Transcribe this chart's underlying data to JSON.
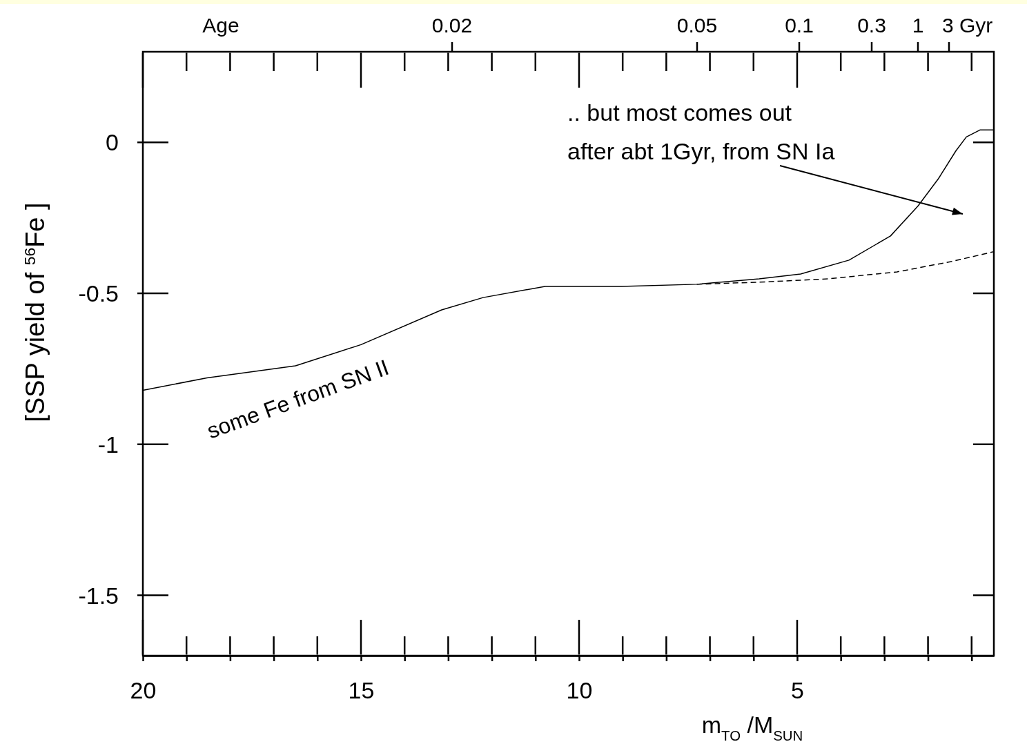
{
  "chart_data": {
    "type": "line",
    "xlabel": "m$_{TO}$ /M$_{SUN}$",
    "ylabel": "[SSP yield of $^{56}$Fe  ]",
    "xlim": [
      20,
      0.49
    ],
    "ylim": [
      -1.7,
      0.3
    ],
    "xticks": [
      20,
      {
        "value": 19,
        "label": null
      },
      {
        "value": 18,
        "label": null
      },
      {
        "value": 17,
        "label": null
      },
      {
        "value": 16,
        "label": null
      },
      15,
      {
        "value": 14,
        "label": null
      },
      {
        "value": 13,
        "label": null
      },
      {
        "value": 12,
        "label": null
      },
      {
        "value": 11,
        "label": null
      },
      10,
      {
        "value": 9,
        "label": null
      },
      {
        "value": 8,
        "label": null
      },
      {
        "value": 7,
        "label": null
      },
      {
        "value": 6,
        "label": null
      },
      5,
      {
        "value": 4,
        "label": null
      },
      {
        "value": 3,
        "label": null
      },
      {
        "value": 2,
        "label": null
      },
      {
        "value": 1,
        "label": null
      }
    ],
    "yticks": [
      0,
      -0.5,
      -1,
      -1.5
    ],
    "grid": false,
    "series": [
      {
        "color": "#000000",
        "line_style": "solid",
        "x": [
          20,
          18.53,
          16.5,
          15,
          13.15,
          12.2,
          10.78,
          9.04,
          7.3,
          5.87,
          4.92,
          3.81,
          2.86,
          2.23,
          1.76,
          1.36,
          1.12,
          0.81,
          0.49
        ],
        "values": [
          -0.821,
          -0.78,
          -0.74,
          -0.67,
          -0.555,
          -0.514,
          -0.477,
          -0.477,
          -0.47,
          -0.452,
          -0.436,
          -0.39,
          -0.31,
          -0.211,
          -0.12,
          -0.028,
          0.018,
          0.041,
          0.041
        ]
      },
      {
        "color": "#000000",
        "line_style": "dashed",
        "x": [
          7.3,
          5.87,
          4.29,
          2.71,
          1.44,
          0.49
        ],
        "values": [
          -0.47,
          -0.463,
          -0.452,
          -0.429,
          -0.394,
          -0.362
        ]
      }
    ],
    "annotations": [
      "Age",
      "0.02",
      "0.05",
      "0.1",
      "0.3",
      "1",
      "3 Gyr",
      "some Fe from SN II",
      ".. but most comes out\nafter abt 1Gyr, from SN Ia"
    ]
  }
}
